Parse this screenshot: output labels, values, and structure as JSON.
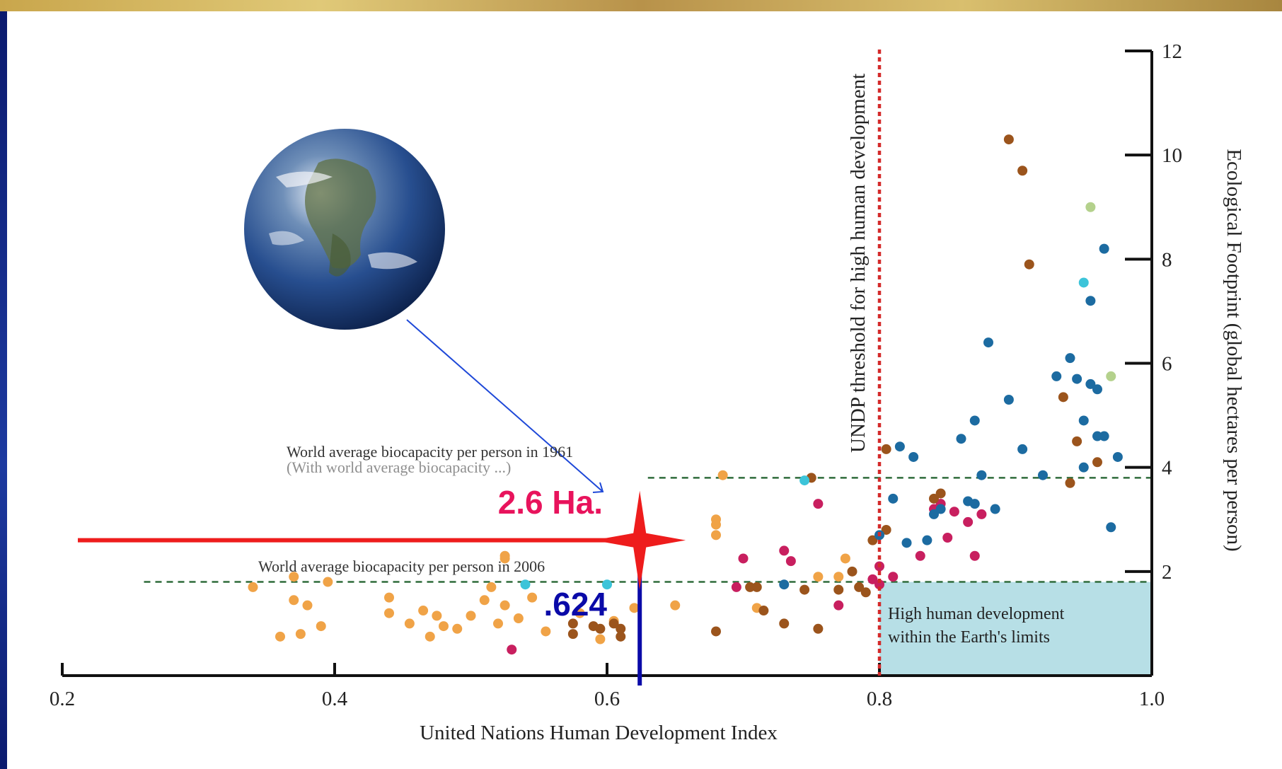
{
  "chart_data": {
    "type": "scatter",
    "xlabel": "United Nations Human Development Index",
    "ylabel": "Ecological Footprint (global hectares per person)",
    "xlim": [
      0.2,
      1.0
    ],
    "ylim": [
      0,
      12
    ],
    "x_ticks": [
      "0.2",
      "0.4",
      "0.6",
      "0.8",
      "1.0"
    ],
    "y_ticks": [
      "2",
      "4",
      "6",
      "8",
      "10",
      "12"
    ],
    "grid": false,
    "threshold": {
      "x": 0.8,
      "label": "UNDP threshold for high human development",
      "color": "#d42a2a"
    },
    "reference_lines": [
      {
        "y": 3.8,
        "label": "World average biocapacity per person in 1961",
        "sublabel": "(With world average biocapacity ...)",
        "color": "#2e6b3a"
      },
      {
        "y": 1.8,
        "label": "World average biocapacity per person in 2006",
        "color": "#2e6b3a"
      }
    ],
    "shaded_region": {
      "x": [
        0.8,
        1.0
      ],
      "y": [
        0,
        1.8
      ],
      "label_lines": [
        "High human development",
        "within the Earth's limits"
      ],
      "color": "#b7dfe6"
    },
    "highlight": {
      "x": 0.624,
      "y": 2.6,
      "x_label": ".624",
      "y_label": "2.6 Ha.",
      "x_color": "#0a0aa8",
      "y_color": "#e8135c",
      "marker_color": "#ee1c1c"
    },
    "series_colors": {
      "africa": "#f0a347",
      "asia_pacific": "#c81f5f",
      "latin_america": "#9b541c",
      "europe_nonEU": "#1c6ba1",
      "middle_east": "#3cc4d9",
      "north_america": "#b4d18c"
    },
    "series": [
      {
        "key": "africa",
        "points": [
          [
            0.34,
            1.7
          ],
          [
            0.36,
            0.75
          ],
          [
            0.37,
            1.45
          ],
          [
            0.37,
            1.9
          ],
          [
            0.375,
            0.8
          ],
          [
            0.38,
            1.35
          ],
          [
            0.39,
            0.95
          ],
          [
            0.395,
            1.8
          ],
          [
            0.44,
            1.5
          ],
          [
            0.44,
            1.2
          ],
          [
            0.455,
            1.0
          ],
          [
            0.465,
            1.25
          ],
          [
            0.47,
            0.75
          ],
          [
            0.475,
            1.15
          ],
          [
            0.48,
            0.95
          ],
          [
            0.49,
            0.9
          ],
          [
            0.5,
            1.15
          ],
          [
            0.51,
            1.45
          ],
          [
            0.515,
            1.7
          ],
          [
            0.52,
            1.0
          ],
          [
            0.525,
            2.25
          ],
          [
            0.525,
            2.3
          ],
          [
            0.525,
            1.35
          ],
          [
            0.535,
            1.1
          ],
          [
            0.545,
            1.5
          ],
          [
            0.555,
            0.85
          ],
          [
            0.58,
            1.2
          ],
          [
            0.595,
            0.7
          ],
          [
            0.605,
            1.05
          ],
          [
            0.62,
            1.3
          ],
          [
            0.65,
            1.35
          ],
          [
            0.68,
            2.9
          ],
          [
            0.68,
            3.0
          ],
          [
            0.68,
            2.7
          ],
          [
            0.685,
            3.85
          ],
          [
            0.71,
            1.3
          ],
          [
            0.755,
            1.9
          ],
          [
            0.77,
            1.9
          ],
          [
            0.775,
            2.25
          ]
        ]
      },
      {
        "key": "asia_pacific",
        "points": [
          [
            0.53,
            0.5
          ],
          [
            0.695,
            1.7
          ],
          [
            0.7,
            2.25
          ],
          [
            0.73,
            2.4
          ],
          [
            0.735,
            2.2
          ],
          [
            0.755,
            3.3
          ],
          [
            0.77,
            1.35
          ],
          [
            0.795,
            1.85
          ],
          [
            0.8,
            1.75
          ],
          [
            0.8,
            2.1
          ],
          [
            0.81,
            1.9
          ],
          [
            0.83,
            2.3
          ],
          [
            0.84,
            3.2
          ],
          [
            0.845,
            3.3
          ],
          [
            0.85,
            2.65
          ],
          [
            0.855,
            3.15
          ],
          [
            0.865,
            2.95
          ],
          [
            0.87,
            2.3
          ],
          [
            0.875,
            3.1
          ]
        ]
      },
      {
        "key": "latin_america",
        "points": [
          [
            0.575,
            0.8
          ],
          [
            0.575,
            1.0
          ],
          [
            0.59,
            0.95
          ],
          [
            0.595,
            0.9
          ],
          [
            0.605,
            1.0
          ],
          [
            0.61,
            0.9
          ],
          [
            0.61,
            0.75
          ],
          [
            0.68,
            0.85
          ],
          [
            0.705,
            1.7
          ],
          [
            0.71,
            1.7
          ],
          [
            0.715,
            1.25
          ],
          [
            0.73,
            1.0
          ],
          [
            0.745,
            1.65
          ],
          [
            0.75,
            3.8
          ],
          [
            0.755,
            0.9
          ],
          [
            0.77,
            1.65
          ],
          [
            0.78,
            2.0
          ],
          [
            0.785,
            1.7
          ],
          [
            0.79,
            1.6
          ],
          [
            0.795,
            2.6
          ],
          [
            0.805,
            2.8
          ],
          [
            0.805,
            4.35
          ],
          [
            0.84,
            3.4
          ],
          [
            0.845,
            3.5
          ],
          [
            0.895,
            10.3
          ],
          [
            0.905,
            9.7
          ],
          [
            0.91,
            7.9
          ],
          [
            0.935,
            5.35
          ],
          [
            0.94,
            3.7
          ],
          [
            0.945,
            4.5
          ],
          [
            0.96,
            4.1
          ]
        ]
      },
      {
        "key": "europe_nonEU",
        "points": [
          [
            0.73,
            1.75
          ],
          [
            0.8,
            2.7
          ],
          [
            0.81,
            3.4
          ],
          [
            0.815,
            4.4
          ],
          [
            0.82,
            2.55
          ],
          [
            0.825,
            4.2
          ],
          [
            0.835,
            2.6
          ],
          [
            0.84,
            3.1
          ],
          [
            0.845,
            3.2
          ],
          [
            0.86,
            4.55
          ],
          [
            0.865,
            3.35
          ],
          [
            0.87,
            3.3
          ],
          [
            0.87,
            4.9
          ],
          [
            0.875,
            3.85
          ],
          [
            0.88,
            6.4
          ],
          [
            0.885,
            3.2
          ],
          [
            0.895,
            5.3
          ],
          [
            0.905,
            4.35
          ],
          [
            0.92,
            3.85
          ],
          [
            0.93,
            5.75
          ],
          [
            0.94,
            6.1
          ],
          [
            0.945,
            5.7
          ],
          [
            0.95,
            4.9
          ],
          [
            0.955,
            5.6
          ],
          [
            0.96,
            5.5
          ],
          [
            0.96,
            4.6
          ],
          [
            0.95,
            4.0
          ],
          [
            0.955,
            7.2
          ],
          [
            0.965,
            8.2
          ],
          [
            0.965,
            4.6
          ],
          [
            0.975,
            4.2
          ],
          [
            0.97,
            2.85
          ]
        ]
      },
      {
        "key": "middle_east",
        "points": [
          [
            0.54,
            1.75
          ],
          [
            0.6,
            1.75
          ],
          [
            0.745,
            3.75
          ],
          [
            0.95,
            7.55
          ]
        ]
      },
      {
        "key": "north_america",
        "points": [
          [
            0.955,
            9.0
          ],
          [
            0.97,
            5.75
          ]
        ]
      }
    ]
  }
}
